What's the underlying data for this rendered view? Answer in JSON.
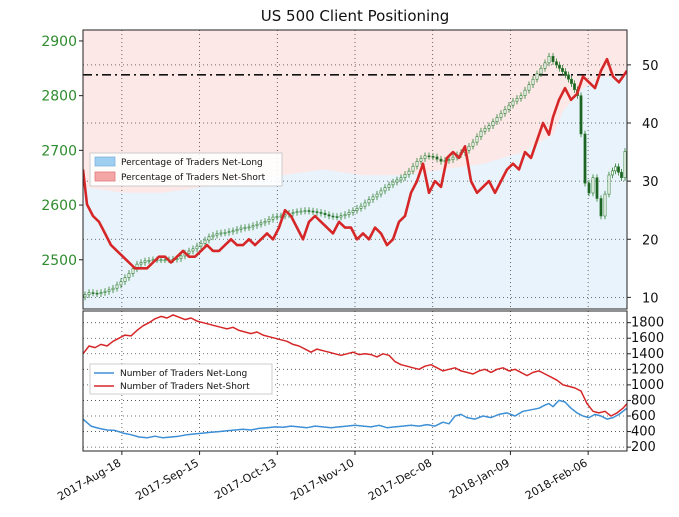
{
  "chart_data": [
    {
      "type": "line",
      "title": "US 500 Client Positioning",
      "price_axis": {
        "ticks": [
          2500,
          2600,
          2700,
          2800,
          2900
        ],
        "range": [
          2410,
          2920
        ]
      },
      "ratio_axis": {
        "ticks": [
          10,
          20,
          30,
          40,
          50
        ],
        "range": [
          8,
          56
        ]
      },
      "reference_level": 2838,
      "legend": {
        "placement": "upper-left",
        "entries": [
          {
            "label": "Percentage of Traders Net-Long",
            "color": "#9ecff0"
          },
          {
            "label": "Percentage of Traders Net-Short",
            "color": "#f4a6a6"
          }
        ]
      },
      "price_color": "#2e7d32",
      "ratio_color": "#d62728",
      "price": [
        [
          0,
          2432
        ],
        [
          8,
          2440
        ],
        [
          16,
          2438
        ],
        [
          24,
          2442
        ],
        [
          32,
          2448
        ],
        [
          40,
          2460
        ],
        [
          48,
          2475
        ],
        [
          56,
          2492
        ],
        [
          64,
          2498
        ],
        [
          72,
          2500
        ],
        [
          80,
          2500
        ],
        [
          88,
          2500
        ],
        [
          96,
          2502
        ],
        [
          104,
          2512
        ],
        [
          112,
          2520
        ],
        [
          120,
          2530
        ],
        [
          128,
          2542
        ],
        [
          136,
          2548
        ],
        [
          144,
          2550
        ],
        [
          152,
          2553
        ],
        [
          160,
          2558
        ],
        [
          168,
          2560
        ],
        [
          176,
          2565
        ],
        [
          184,
          2570
        ],
        [
          192,
          2578
        ],
        [
          200,
          2580
        ],
        [
          208,
          2585
        ],
        [
          216,
          2588
        ],
        [
          224,
          2590
        ],
        [
          232,
          2588
        ],
        [
          240,
          2585
        ],
        [
          248,
          2580
        ],
        [
          256,
          2578
        ],
        [
          264,
          2583
        ],
        [
          272,
          2590
        ],
        [
          280,
          2598
        ],
        [
          288,
          2610
        ],
        [
          296,
          2620
        ],
        [
          304,
          2632
        ],
        [
          312,
          2642
        ],
        [
          320,
          2650
        ],
        [
          328,
          2662
        ],
        [
          336,
          2680
        ],
        [
          344,
          2690
        ],
        [
          352,
          2688
        ],
        [
          360,
          2680
        ],
        [
          368,
          2683
        ],
        [
          376,
          2692
        ],
        [
          384,
          2700
        ],
        [
          392,
          2715
        ],
        [
          400,
          2735
        ],
        [
          408,
          2745
        ],
        [
          416,
          2760
        ],
        [
          424,
          2775
        ],
        [
          432,
          2790
        ],
        [
          440,
          2800
        ],
        [
          448,
          2820
        ],
        [
          456,
          2840
        ],
        [
          464,
          2860
        ],
        [
          468,
          2872
        ],
        [
          472,
          2862
        ],
        [
          478,
          2850
        ],
        [
          484,
          2838
        ],
        [
          490,
          2822
        ],
        [
          496,
          2800
        ],
        [
          500,
          2730
        ],
        [
          504,
          2640
        ],
        [
          508,
          2622
        ],
        [
          512,
          2650
        ],
        [
          516,
          2612
        ],
        [
          520,
          2580
        ],
        [
          524,
          2620
        ],
        [
          528,
          2655
        ],
        [
          534,
          2670
        ],
        [
          540,
          2650
        ],
        [
          544,
          2698
        ]
      ],
      "ratio": [
        [
          0,
          32
        ],
        [
          4,
          26
        ],
        [
          10,
          24
        ],
        [
          16,
          23
        ],
        [
          22,
          21
        ],
        [
          28,
          19
        ],
        [
          34,
          18
        ],
        [
          40,
          17
        ],
        [
          46,
          16
        ],
        [
          52,
          15
        ],
        [
          58,
          15
        ],
        [
          64,
          15
        ],
        [
          70,
          16
        ],
        [
          76,
          17
        ],
        [
          82,
          17
        ],
        [
          88,
          16
        ],
        [
          94,
          17
        ],
        [
          100,
          18
        ],
        [
          106,
          17
        ],
        [
          112,
          17
        ],
        [
          118,
          18
        ],
        [
          124,
          19
        ],
        [
          130,
          18
        ],
        [
          136,
          18
        ],
        [
          142,
          19
        ],
        [
          148,
          20
        ],
        [
          154,
          19
        ],
        [
          160,
          19
        ],
        [
          166,
          20
        ],
        [
          172,
          19
        ],
        [
          178,
          20
        ],
        [
          184,
          21
        ],
        [
          190,
          20
        ],
        [
          196,
          22
        ],
        [
          202,
          25
        ],
        [
          208,
          24
        ],
        [
          214,
          22
        ],
        [
          220,
          20
        ],
        [
          226,
          23
        ],
        [
          232,
          24
        ],
        [
          238,
          23
        ],
        [
          244,
          22
        ],
        [
          250,
          21
        ],
        [
          256,
          23
        ],
        [
          262,
          22
        ],
        [
          268,
          22
        ],
        [
          274,
          20
        ],
        [
          280,
          21
        ],
        [
          286,
          20
        ],
        [
          292,
          22
        ],
        [
          298,
          21
        ],
        [
          304,
          19
        ],
        [
          310,
          20
        ],
        [
          316,
          23
        ],
        [
          322,
          24
        ],
        [
          328,
          28
        ],
        [
          334,
          30
        ],
        [
          340,
          33
        ],
        [
          346,
          28
        ],
        [
          352,
          30
        ],
        [
          358,
          29
        ],
        [
          364,
          34
        ],
        [
          370,
          35
        ],
        [
          376,
          34
        ],
        [
          382,
          36
        ],
        [
          388,
          30
        ],
        [
          394,
          28
        ],
        [
          400,
          29
        ],
        [
          406,
          30
        ],
        [
          412,
          28
        ],
        [
          418,
          30
        ],
        [
          424,
          32
        ],
        [
          430,
          33
        ],
        [
          436,
          32
        ],
        [
          442,
          35
        ],
        [
          448,
          34
        ],
        [
          454,
          37
        ],
        [
          460,
          40
        ],
        [
          466,
          38
        ],
        [
          470,
          41
        ],
        [
          476,
          44
        ],
        [
          482,
          46
        ],
        [
          488,
          44
        ],
        [
          494,
          45
        ],
        [
          500,
          48
        ],
        [
          506,
          47
        ],
        [
          512,
          46
        ],
        [
          518,
          49
        ],
        [
          524,
          51
        ],
        [
          530,
          48
        ],
        [
          536,
          47
        ],
        [
          544,
          49
        ]
      ],
      "ratio_area": [
        [
          0,
          29
        ],
        [
          40,
          28
        ],
        [
          80,
          28
        ],
        [
          120,
          29
        ],
        [
          160,
          30
        ],
        [
          200,
          31
        ],
        [
          240,
          32
        ],
        [
          280,
          31
        ],
        [
          320,
          31
        ],
        [
          360,
          32
        ],
        [
          400,
          33
        ],
        [
          440,
          35
        ],
        [
          470,
          38
        ],
        [
          480,
          42
        ],
        [
          500,
          46
        ],
        [
          520,
          48
        ],
        [
          544,
          48
        ]
      ]
    },
    {
      "type": "line",
      "y_axis": {
        "ticks": [
          200,
          400,
          600,
          800,
          1000,
          1200,
          1400,
          1600,
          1800
        ],
        "range": [
          150,
          1950
        ]
      },
      "x_tick_labels": [
        "2017-Aug-18",
        "2017-Sep-15",
        "2017-Oct-13",
        "2017-Nov-10",
        "2017-Dec-08",
        "2018-Jan-09",
        "2018-Feb-06"
      ],
      "legend": {
        "placement": "middle-left",
        "entries": [
          {
            "label": "Number of Traders Net-Long",
            "color": "#3d8fd6"
          },
          {
            "label": "Number of Traders Net-Short",
            "color": "#d62728"
          }
        ]
      },
      "net_long": [
        [
          0,
          560
        ],
        [
          8,
          470
        ],
        [
          16,
          440
        ],
        [
          24,
          420
        ],
        [
          32,
          415
        ],
        [
          40,
          380
        ],
        [
          48,
          360
        ],
        [
          56,
          330
        ],
        [
          64,
          320
        ],
        [
          72,
          340
        ],
        [
          80,
          320
        ],
        [
          88,
          330
        ],
        [
          96,
          340
        ],
        [
          104,
          360
        ],
        [
          112,
          370
        ],
        [
          120,
          380
        ],
        [
          128,
          390
        ],
        [
          136,
          400
        ],
        [
          144,
          410
        ],
        [
          152,
          420
        ],
        [
          160,
          430
        ],
        [
          168,
          420
        ],
        [
          176,
          440
        ],
        [
          184,
          450
        ],
        [
          192,
          460
        ],
        [
          200,
          455
        ],
        [
          208,
          470
        ],
        [
          216,
          460
        ],
        [
          224,
          450
        ],
        [
          232,
          470
        ],
        [
          240,
          460
        ],
        [
          248,
          450
        ],
        [
          256,
          460
        ],
        [
          264,
          470
        ],
        [
          272,
          480
        ],
        [
          280,
          470
        ],
        [
          288,
          460
        ],
        [
          296,
          480
        ],
        [
          304,
          450
        ],
        [
          312,
          460
        ],
        [
          320,
          470
        ],
        [
          328,
          480
        ],
        [
          336,
          470
        ],
        [
          344,
          490
        ],
        [
          352,
          470
        ],
        [
          360,
          520
        ],
        [
          366,
          500
        ],
        [
          372,
          600
        ],
        [
          378,
          620
        ],
        [
          384,
          580
        ],
        [
          392,
          560
        ],
        [
          400,
          600
        ],
        [
          408,
          580
        ],
        [
          416,
          620
        ],
        [
          424,
          640
        ],
        [
          432,
          600
        ],
        [
          440,
          660
        ],
        [
          448,
          680
        ],
        [
          456,
          700
        ],
        [
          462,
          740
        ],
        [
          466,
          760
        ],
        [
          470,
          720
        ],
        [
          476,
          800
        ],
        [
          482,
          780
        ],
        [
          488,
          700
        ],
        [
          494,
          640
        ],
        [
          500,
          600
        ],
        [
          506,
          580
        ],
        [
          512,
          620
        ],
        [
          518,
          600
        ],
        [
          524,
          560
        ],
        [
          530,
          580
        ],
        [
          536,
          620
        ],
        [
          544,
          700
        ]
      ],
      "net_short": [
        [
          0,
          1400
        ],
        [
          6,
          1500
        ],
        [
          12,
          1480
        ],
        [
          18,
          1520
        ],
        [
          24,
          1500
        ],
        [
          30,
          1560
        ],
        [
          36,
          1600
        ],
        [
          42,
          1640
        ],
        [
          48,
          1630
        ],
        [
          54,
          1700
        ],
        [
          60,
          1760
        ],
        [
          66,
          1800
        ],
        [
          72,
          1850
        ],
        [
          78,
          1880
        ],
        [
          84,
          1860
        ],
        [
          90,
          1900
        ],
        [
          96,
          1870
        ],
        [
          102,
          1840
        ],
        [
          108,
          1860
        ],
        [
          114,
          1820
        ],
        [
          120,
          1800
        ],
        [
          126,
          1780
        ],
        [
          132,
          1760
        ],
        [
          138,
          1740
        ],
        [
          144,
          1720
        ],
        [
          150,
          1740
        ],
        [
          156,
          1700
        ],
        [
          162,
          1680
        ],
        [
          168,
          1660
        ],
        [
          174,
          1680
        ],
        [
          180,
          1640
        ],
        [
          186,
          1620
        ],
        [
          192,
          1600
        ],
        [
          198,
          1580
        ],
        [
          204,
          1560
        ],
        [
          210,
          1520
        ],
        [
          216,
          1500
        ],
        [
          222,
          1460
        ],
        [
          228,
          1420
        ],
        [
          234,
          1460
        ],
        [
          240,
          1440
        ],
        [
          246,
          1420
        ],
        [
          252,
          1400
        ],
        [
          258,
          1380
        ],
        [
          264,
          1400
        ],
        [
          270,
          1420
        ],
        [
          276,
          1390
        ],
        [
          282,
          1400
        ],
        [
          288,
          1390
        ],
        [
          294,
          1360
        ],
        [
          300,
          1400
        ],
        [
          306,
          1380
        ],
        [
          312,
          1300
        ],
        [
          318,
          1260
        ],
        [
          324,
          1240
        ],
        [
          330,
          1220
        ],
        [
          336,
          1200
        ],
        [
          342,
          1240
        ],
        [
          348,
          1260
        ],
        [
          354,
          1220
        ],
        [
          360,
          1180
        ],
        [
          366,
          1200
        ],
        [
          372,
          1220
        ],
        [
          378,
          1180
        ],
        [
          384,
          1160
        ],
        [
          390,
          1140
        ],
        [
          396,
          1180
        ],
        [
          402,
          1200
        ],
        [
          408,
          1160
        ],
        [
          414,
          1200
        ],
        [
          420,
          1220
        ],
        [
          426,
          1180
        ],
        [
          432,
          1200
        ],
        [
          438,
          1160
        ],
        [
          444,
          1120
        ],
        [
          450,
          1160
        ],
        [
          456,
          1180
        ],
        [
          462,
          1140
        ],
        [
          468,
          1100
        ],
        [
          474,
          1060
        ],
        [
          480,
          1000
        ],
        [
          486,
          980
        ],
        [
          492,
          960
        ],
        [
          498,
          920
        ],
        [
          504,
          760
        ],
        [
          510,
          660
        ],
        [
          516,
          640
        ],
        [
          522,
          660
        ],
        [
          528,
          600
        ],
        [
          534,
          640
        ],
        [
          540,
          700
        ],
        [
          544,
          760
        ]
      ]
    }
  ]
}
